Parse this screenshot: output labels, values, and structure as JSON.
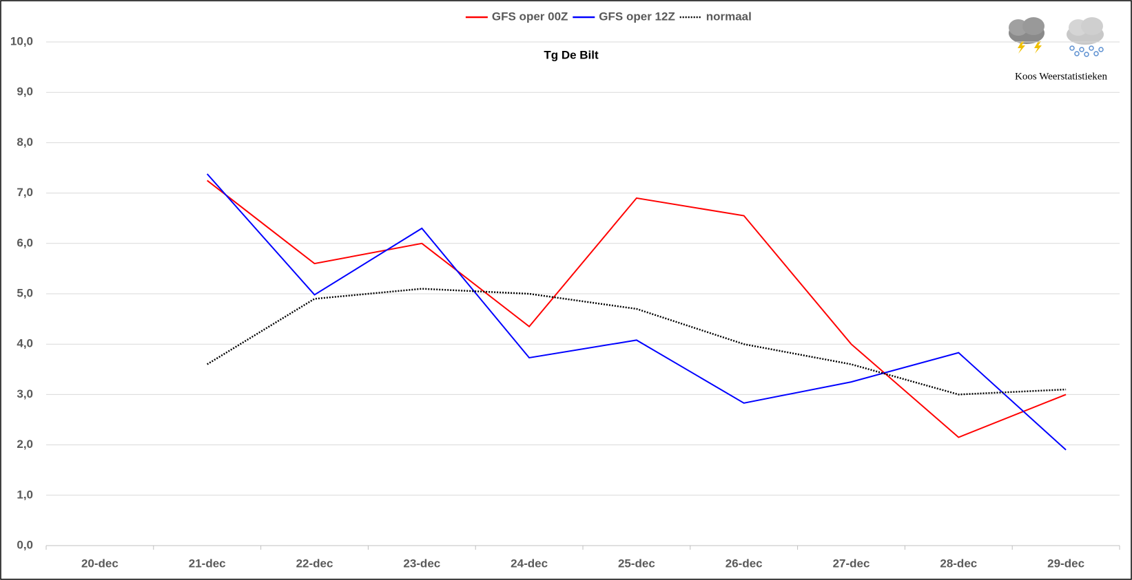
{
  "chart_data": {
    "type": "line",
    "title": "Tg De Bilt",
    "source": "Koos Weerstatistieken",
    "categories": [
      "20-dec",
      "21-dec",
      "22-dec",
      "23-dec",
      "24-dec",
      "25-dec",
      "26-dec",
      "27-dec",
      "28-dec",
      "29-dec"
    ],
    "series": [
      {
        "name": "GFS oper 00Z",
        "color": "#ff0000",
        "values": [
          null,
          7.25,
          5.6,
          6.0,
          4.35,
          6.9,
          6.55,
          4.0,
          2.15,
          3.0
        ]
      },
      {
        "name": "GFS oper 12Z",
        "color": "#0000ff",
        "values": [
          null,
          7.38,
          4.98,
          6.3,
          3.73,
          4.08,
          2.83,
          3.25,
          3.83,
          1.9
        ]
      },
      {
        "name": "normaal",
        "color": "#000000",
        "dash": "dotted",
        "values": [
          null,
          3.6,
          4.9,
          5.1,
          5.0,
          4.7,
          4.0,
          3.6,
          3.0,
          3.1
        ]
      }
    ],
    "ylim": [
      0,
      10
    ],
    "yticks": [
      {
        "value": 0,
        "label": "0,0"
      },
      {
        "value": 1,
        "label": "1,0"
      },
      {
        "value": 2,
        "label": "2,0"
      },
      {
        "value": 3,
        "label": "3,0"
      },
      {
        "value": 4,
        "label": "4,0"
      },
      {
        "value": 5,
        "label": "5,0"
      },
      {
        "value": 6,
        "label": "6,0"
      },
      {
        "value": 7,
        "label": "7,0"
      },
      {
        "value": 8,
        "label": "8,0"
      },
      {
        "value": 9,
        "label": "9,0"
      },
      {
        "value": 10,
        "label": "10,0"
      }
    ],
    "grid": true,
    "legend": "top"
  }
}
